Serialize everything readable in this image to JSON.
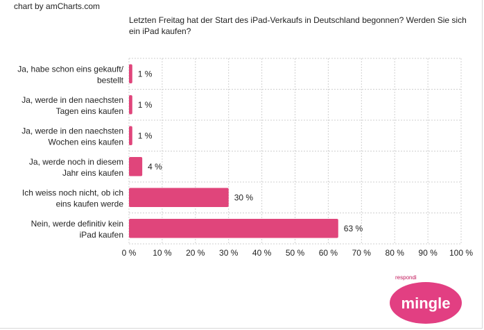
{
  "credit": "chart by amCharts.com",
  "chart_data": {
    "type": "bar",
    "orientation": "horizontal",
    "title": "Letzten Freitag hat der Start des iPad-Verkaufs in Deutschland begonnen? Werden Sie sich ein iPad kaufen?",
    "categories": [
      [
        "Ja, habe schon eins gekauft/",
        "bestellt"
      ],
      [
        "Ja, werde in den naechsten",
        "Tagen eins kaufen"
      ],
      [
        "Ja, werde in den naechsten",
        "Wochen eins kaufen"
      ],
      [
        "Ja, werde noch in diesem",
        "Jahr eins kaufen"
      ],
      [
        "Ich weiss noch nicht, ob ich",
        "eins kaufen werde"
      ],
      [
        "Nein, werde definitiv kein",
        "iPad kaufen"
      ]
    ],
    "values": [
      1,
      1,
      1,
      4,
      30,
      63
    ],
    "value_suffix": " %",
    "xlim": [
      0,
      100
    ],
    "xticks": [
      0,
      10,
      20,
      30,
      40,
      50,
      60,
      70,
      80,
      90,
      100
    ],
    "grid": true,
    "bar_color": "#e0457b"
  },
  "logo": {
    "small": "respondi",
    "main": "mingle",
    "color": "#e23f82"
  }
}
